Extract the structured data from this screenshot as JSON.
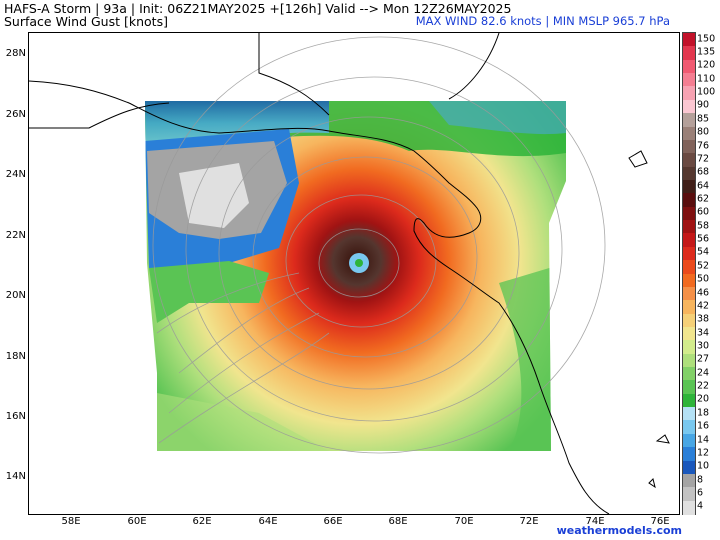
{
  "header": {
    "title": "HAFS-A Storm | 93a | Init: 06Z21MAY2025 +[126h] Valid --> Mon 12Z26MAY2025",
    "subtitle": "Surface Wind Gust [knots]",
    "stats": "MAX WIND 82.6 knots | MIN MSLP 965.7 hPa"
  },
  "map": {
    "lat_labels": [
      "28N",
      "26N",
      "24N",
      "22N",
      "20N",
      "18N",
      "16N",
      "14N"
    ],
    "lon_labels": [
      "58E",
      "60E",
      "62E",
      "64E",
      "66E",
      "68E",
      "70E",
      "72E",
      "74E",
      "76E"
    ],
    "storm_center": {
      "lon": 66.8,
      "lat": 21.25
    },
    "colors": {
      "ocean_background": "#ffffff",
      "land_outline": "#000000",
      "streamline": "#9a9a9a"
    }
  },
  "colorbar": {
    "labels": [
      "150",
      "135",
      "120",
      "110",
      "100",
      "90",
      "85",
      "80",
      "76",
      "72",
      "68",
      "64",
      "62",
      "60",
      "58",
      "56",
      "54",
      "52",
      "50",
      "46",
      "42",
      "38",
      "34",
      "30",
      "27",
      "24",
      "22",
      "20",
      "18",
      "16",
      "14",
      "12",
      "10",
      "8",
      "6",
      "4"
    ],
    "colors": [
      "#c2122a",
      "#e2374e",
      "#f05a72",
      "#f47e92",
      "#f7a2b2",
      "#fbc7d2",
      "#b4a09a",
      "#9a8078",
      "#80625a",
      "#6a4a42",
      "#553830",
      "#401f18",
      "#5a0e0e",
      "#7e1010",
      "#a01313",
      "#c41818",
      "#dc2a1c",
      "#ea4a1c",
      "#f16a20",
      "#f59048",
      "#f7b55e",
      "#f5d078",
      "#f1e58e",
      "#d2ec8c",
      "#aedf7c",
      "#82d068",
      "#5ac454",
      "#2eb43a",
      "#b4e1f5",
      "#79c8ef",
      "#48a6e4",
      "#2a7fd8",
      "#1a58bc",
      "#a4a4a4",
      "#c2c2c2",
      "#e0e0e0"
    ]
  },
  "watermark": "weathermodels.com"
}
